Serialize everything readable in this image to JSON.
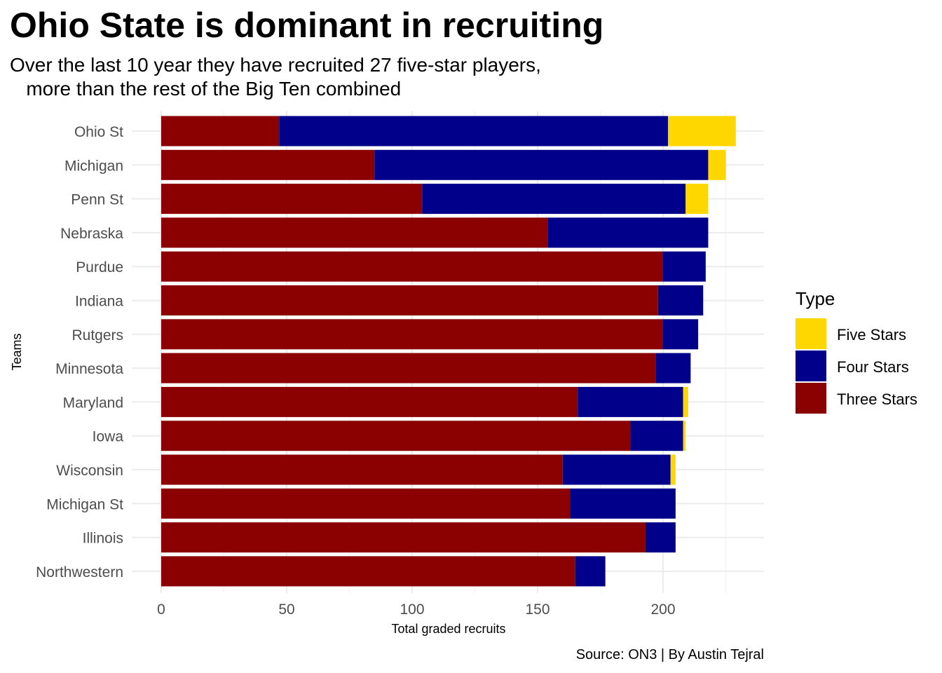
{
  "chart_data": {
    "type": "bar",
    "orientation": "horizontal",
    "stacked": true,
    "title": "Ohio State is dominant in recruiting",
    "subtitle": "Over the last 10 year they have recruited 27 five-star players,\n   more than the rest of the Big Ten combined",
    "xlabel": "Total graded recruits",
    "ylabel": "Teams",
    "caption": "Source: ON3 | By Austin Tejral",
    "xlim": [
      0,
      240
    ],
    "xticks": [
      0,
      50,
      100,
      150,
      200
    ],
    "grid": true,
    "legend": {
      "title": "Type",
      "position": "right",
      "entries": [
        "Five Stars",
        "Four Stars",
        "Three Stars"
      ]
    },
    "categories": [
      "Ohio St",
      "Michigan",
      "Penn St",
      "Nebraska",
      "Purdue",
      "Indiana",
      "Rutgers",
      "Minnesota",
      "Maryland",
      "Iowa",
      "Wisconsin",
      "Michigan St",
      "Illinois",
      "Northwestern"
    ],
    "series": [
      {
        "name": "Three Stars",
        "color": "#8B0000",
        "values": [
          47,
          85,
          104,
          154,
          200,
          198,
          200,
          197,
          166,
          187,
          160,
          163,
          193,
          165
        ]
      },
      {
        "name": "Four Stars",
        "color": "#00008B",
        "values": [
          155,
          133,
          105,
          64,
          17,
          18,
          14,
          14,
          42,
          21,
          43,
          42,
          12,
          12
        ]
      },
      {
        "name": "Five Stars",
        "color": "#FFD700",
        "values": [
          27,
          7,
          9,
          0,
          0,
          0,
          0,
          0,
          2,
          1,
          2,
          0,
          0,
          0
        ]
      }
    ]
  }
}
